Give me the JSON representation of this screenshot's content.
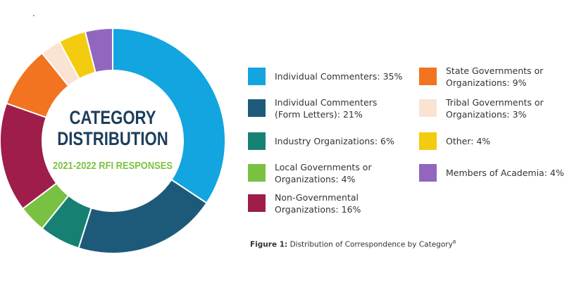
{
  "stray_mark": ".",
  "center": {
    "title_line1": "CATEGORY",
    "title_line2": "DISTRIBUTION",
    "subtitle": "2021-2022 RFI RESPONSES"
  },
  "caption": {
    "label": "Figure 1:",
    "text": " Distribution of Correspondence by Category",
    "superscript": "8"
  },
  "chart_data": {
    "type": "pie",
    "donut": true,
    "title": "CATEGORY DISTRIBUTION",
    "subtitle": "2021-2022 RFI RESPONSES",
    "legend": "right",
    "slices": [
      {
        "label_lines": [
          "Individual Commenters: 35%"
        ],
        "value": 35,
        "color": "#12a5e0"
      },
      {
        "label_lines": [
          "Individual Commenters",
          "(Form Letters): 21%"
        ],
        "value": 21,
        "color": "#1d5a7a"
      },
      {
        "label_lines": [
          "Industry Organizations: 6%"
        ],
        "value": 6,
        "color": "#168173"
      },
      {
        "label_lines": [
          "Local Governments or",
          "Organizations: 4%"
        ],
        "value": 4,
        "color": "#79c142"
      },
      {
        "label_lines": [
          "Non-Governmental",
          "Organizations: 16%"
        ],
        "value": 16,
        "color": "#9e1d4a"
      },
      {
        "label_lines": [
          "State Governments or",
          "Organizations: 9%"
        ],
        "value": 9,
        "color": "#f27320"
      },
      {
        "label_lines": [
          "Tribal Governments or",
          "Organizations: 3%"
        ],
        "value": 3,
        "color": "#fae3d3"
      },
      {
        "label_lines": [
          "Other: 4%"
        ],
        "value": 4,
        "color": "#f3cc10"
      },
      {
        "label_lines": [
          "Members of Academia: 4%"
        ],
        "value": 4,
        "color": "#9266bf"
      }
    ]
  }
}
